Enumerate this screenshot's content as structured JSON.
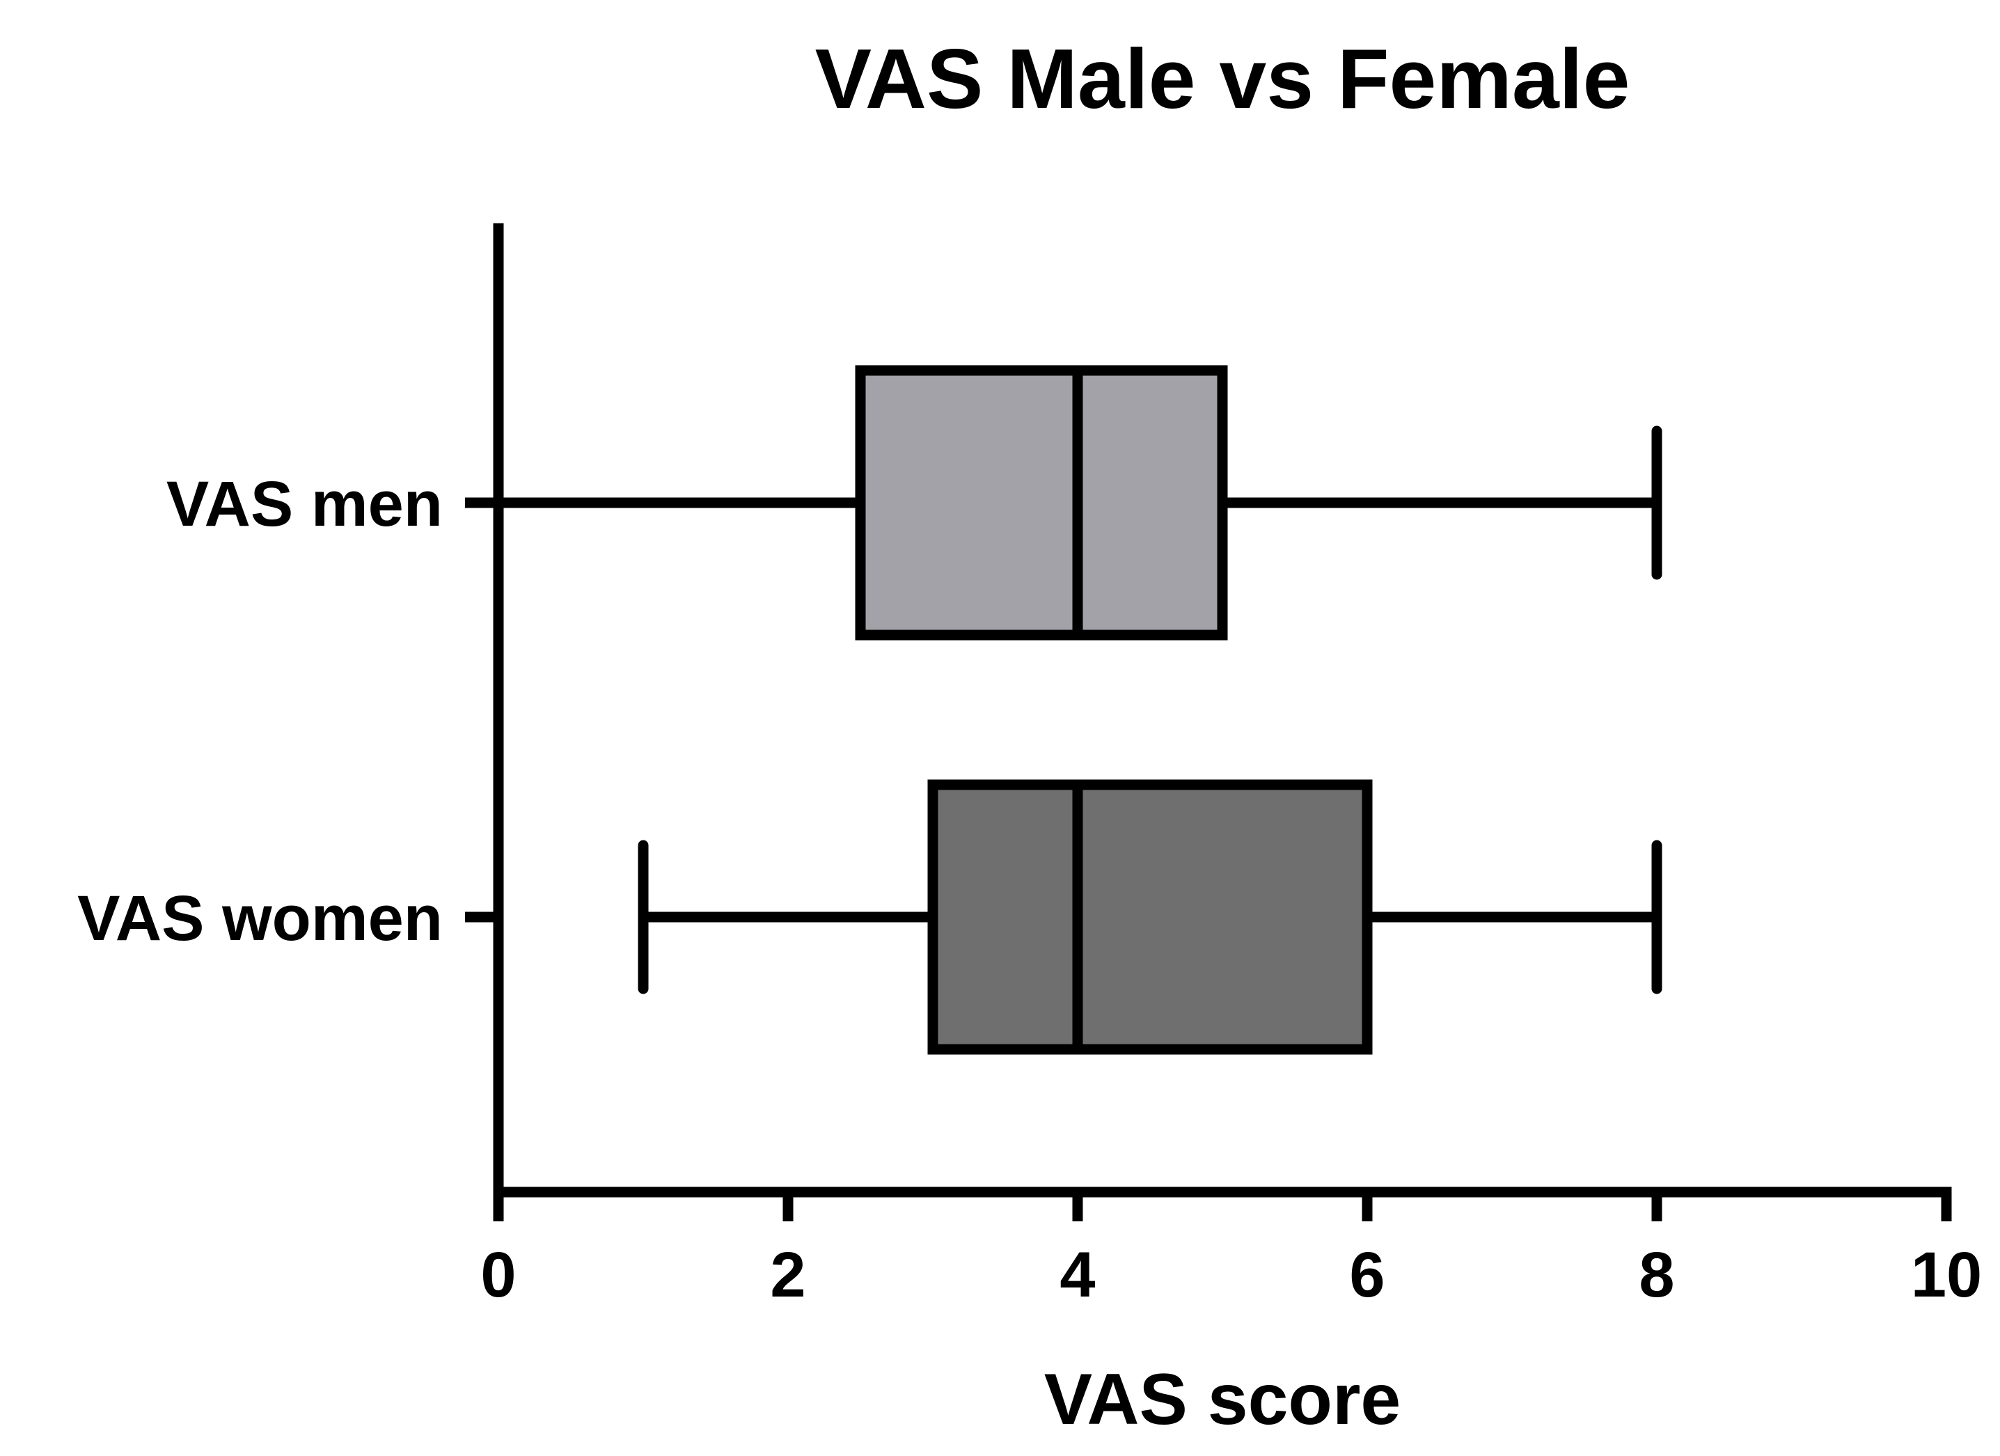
{
  "chart_data": {
    "type": "boxplot",
    "orientation": "horizontal",
    "title": "VAS Male vs Female",
    "xlabel": "VAS score",
    "ylabel": "",
    "xlim": [
      0,
      10
    ],
    "xticks": [
      "0",
      "2",
      "4",
      "6",
      "8",
      "10"
    ],
    "xtick_values": [
      0,
      2,
      4,
      6,
      8,
      10
    ],
    "grid": false,
    "legend": "none",
    "categories": [
      "VAS men",
      "VAS women"
    ],
    "series": [
      {
        "label": "VAS men",
        "min": 0,
        "q1": 2.5,
        "median": 4,
        "q3": 5,
        "max": 8,
        "fill": "#a3a2a8"
      },
      {
        "label": "VAS women",
        "min": 1,
        "q1": 3,
        "median": 4,
        "q3": 6,
        "max": 8,
        "fill": "#6f6f6f"
      }
    ],
    "colors": {
      "axis": "#000000",
      "outline": "#000000"
    }
  }
}
